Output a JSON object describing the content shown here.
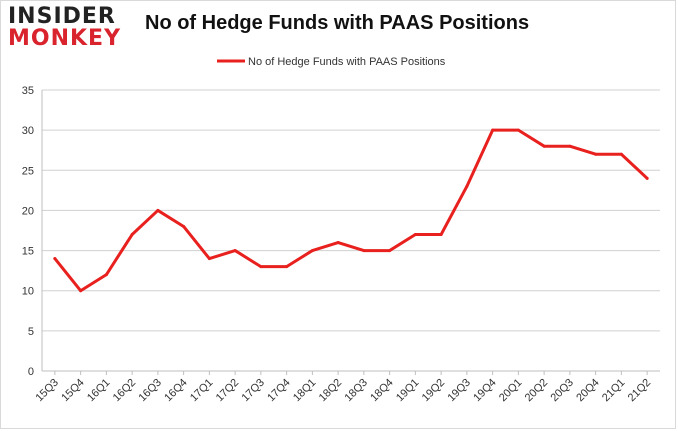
{
  "logo": {
    "line1": "INSIDER",
    "line2": "MONKEY"
  },
  "colors": {
    "series": "#e8201e",
    "grid": "#d0d0d0",
    "brand_red": "#d9232d"
  },
  "chart_data": {
    "type": "line",
    "title": "No of Hedge Funds with PAAS Positions",
    "xlabel": "",
    "ylabel": "",
    "ylim": [
      0,
      35
    ],
    "yticks": [
      0,
      5,
      10,
      15,
      20,
      25,
      30,
      35
    ],
    "grid": true,
    "legend_position": "top-center",
    "categories": [
      "15Q3",
      "15Q4",
      "16Q1",
      "16Q2",
      "16Q3",
      "16Q4",
      "17Q1",
      "17Q2",
      "17Q3",
      "17Q4",
      "18Q1",
      "18Q2",
      "18Q3",
      "18Q4",
      "19Q1",
      "19Q2",
      "19Q3",
      "19Q4",
      "20Q1",
      "20Q2",
      "20Q3",
      "20Q4",
      "21Q1",
      "21Q2"
    ],
    "series": [
      {
        "name": "No of Hedge Funds with PAAS Positions",
        "values": [
          14,
          10,
          12,
          17,
          20,
          18,
          14,
          15,
          13,
          13,
          15,
          16,
          15,
          15,
          17,
          17,
          23,
          30,
          30,
          28,
          28,
          27,
          27,
          24
        ]
      }
    ]
  }
}
